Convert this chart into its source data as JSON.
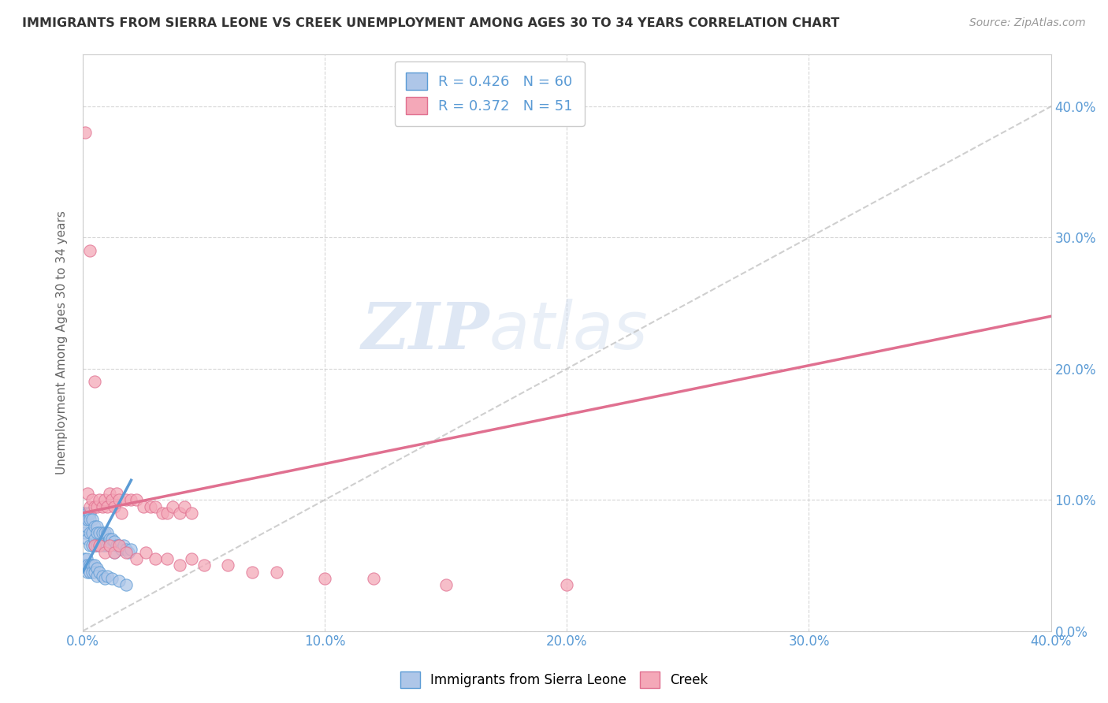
{
  "title": "IMMIGRANTS FROM SIERRA LEONE VS CREEK UNEMPLOYMENT AMONG AGES 30 TO 34 YEARS CORRELATION CHART",
  "source": "Source: ZipAtlas.com",
  "ylabel": "Unemployment Among Ages 30 to 34 years",
  "watermark_zip": "ZIP",
  "watermark_atlas": "atlas",
  "legend_blue_R": 0.426,
  "legend_blue_N": 60,
  "legend_pink_R": 0.372,
  "legend_pink_N": 51,
  "blue_color": "#aec6e8",
  "pink_color": "#f4a8b8",
  "blue_line_color": "#5b9bd5",
  "pink_line_color": "#e07090",
  "blue_scatter": {
    "x": [
      0.0005,
      0.001,
      0.001,
      0.0015,
      0.002,
      0.002,
      0.002,
      0.003,
      0.003,
      0.003,
      0.003,
      0.004,
      0.004,
      0.004,
      0.005,
      0.005,
      0.005,
      0.006,
      0.006,
      0.006,
      0.007,
      0.007,
      0.008,
      0.008,
      0.009,
      0.009,
      0.01,
      0.01,
      0.011,
      0.011,
      0.012,
      0.013,
      0.013,
      0.014,
      0.015,
      0.016,
      0.017,
      0.018,
      0.019,
      0.02,
      0.0005,
      0.001,
      0.0015,
      0.002,
      0.002,
      0.003,
      0.003,
      0.004,
      0.004,
      0.005,
      0.005,
      0.006,
      0.006,
      0.007,
      0.008,
      0.009,
      0.01,
      0.012,
      0.015,
      0.018
    ],
    "y": [
      0.09,
      0.085,
      0.075,
      0.08,
      0.09,
      0.085,
      0.07,
      0.09,
      0.085,
      0.075,
      0.065,
      0.085,
      0.075,
      0.065,
      0.08,
      0.07,
      0.065,
      0.08,
      0.075,
      0.065,
      0.075,
      0.065,
      0.075,
      0.065,
      0.075,
      0.065,
      0.075,
      0.065,
      0.07,
      0.065,
      0.07,
      0.068,
      0.06,
      0.065,
      0.065,
      0.062,
      0.065,
      0.062,
      0.06,
      0.062,
      0.055,
      0.05,
      0.055,
      0.05,
      0.045,
      0.05,
      0.045,
      0.05,
      0.045,
      0.05,
      0.045,
      0.048,
      0.042,
      0.045,
      0.042,
      0.04,
      0.042,
      0.04,
      0.038,
      0.035
    ]
  },
  "pink_scatter": {
    "x": [
      0.001,
      0.002,
      0.003,
      0.003,
      0.004,
      0.005,
      0.005,
      0.006,
      0.007,
      0.008,
      0.009,
      0.01,
      0.011,
      0.012,
      0.013,
      0.014,
      0.015,
      0.016,
      0.018,
      0.02,
      0.022,
      0.025,
      0.028,
      0.03,
      0.033,
      0.035,
      0.037,
      0.04,
      0.042,
      0.045,
      0.005,
      0.007,
      0.009,
      0.011,
      0.013,
      0.015,
      0.018,
      0.022,
      0.026,
      0.03,
      0.035,
      0.04,
      0.045,
      0.05,
      0.06,
      0.07,
      0.08,
      0.1,
      0.12,
      0.15,
      0.2
    ],
    "y": [
      0.38,
      0.105,
      0.095,
      0.29,
      0.1,
      0.095,
      0.19,
      0.095,
      0.1,
      0.095,
      0.1,
      0.095,
      0.105,
      0.1,
      0.095,
      0.105,
      0.1,
      0.09,
      0.1,
      0.1,
      0.1,
      0.095,
      0.095,
      0.095,
      0.09,
      0.09,
      0.095,
      0.09,
      0.095,
      0.09,
      0.065,
      0.065,
      0.06,
      0.065,
      0.06,
      0.065,
      0.06,
      0.055,
      0.06,
      0.055,
      0.055,
      0.05,
      0.055,
      0.05,
      0.05,
      0.045,
      0.045,
      0.04,
      0.04,
      0.035,
      0.035
    ]
  },
  "xlim": [
    0.0,
    0.4
  ],
  "ylim": [
    0.0,
    0.44
  ],
  "xtick_vals": [
    0.0,
    0.1,
    0.2,
    0.3,
    0.4
  ],
  "ytick_vals": [
    0.0,
    0.1,
    0.2,
    0.3,
    0.4
  ],
  "grid_color": "#cccccc",
  "background_color": "#ffffff",
  "pink_trend_x0": 0.0,
  "pink_trend_x1": 0.4,
  "pink_trend_y0": 0.09,
  "pink_trend_y1": 0.24,
  "blue_trend_x0": 0.0,
  "blue_trend_x1": 0.02,
  "blue_trend_y0": 0.045,
  "blue_trend_y1": 0.115,
  "diag_color": "#bbbbbb"
}
